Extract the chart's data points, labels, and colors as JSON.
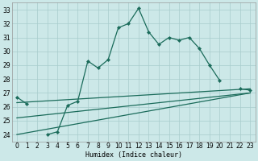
{
  "xlabel": "Humidex (Indice chaleur)",
  "bg_color": "#cce8e8",
  "grid_color": "#a8cccc",
  "line_color": "#1a6b5a",
  "xlim": [
    -0.5,
    23.5
  ],
  "ylim": [
    23.5,
    33.5
  ],
  "yticks": [
    24,
    25,
    26,
    27,
    28,
    29,
    30,
    31,
    32,
    33
  ],
  "xtick_labels": [
    "0",
    "1",
    "2",
    "3",
    "4",
    "5",
    "6",
    "7",
    "8",
    "9",
    "10",
    "11",
    "12",
    "13",
    "14",
    "15",
    "16",
    "17",
    "18",
    "19",
    "20",
    "21",
    "22",
    "23"
  ],
  "main_series": {
    "x": [
      0,
      1,
      3,
      4,
      5,
      6,
      7,
      8,
      9,
      10,
      11,
      12,
      13,
      14,
      15,
      16,
      17,
      18,
      19,
      20,
      22,
      23
    ],
    "y": [
      26.7,
      26.2,
      24.0,
      24.2,
      26.1,
      26.4,
      29.3,
      28.8,
      29.4,
      31.7,
      32.0,
      33.1,
      31.4,
      30.5,
      31.0,
      30.8,
      31.0,
      30.2,
      29.0,
      27.9,
      27.3,
      27.2
    ]
  },
  "trend_lines": [
    {
      "x": [
        0,
        23
      ],
      "y": [
        26.3,
        27.3
      ]
    },
    {
      "x": [
        0,
        23
      ],
      "y": [
        25.2,
        27.0
      ]
    },
    {
      "x": [
        0,
        23
      ],
      "y": [
        24.0,
        27.0
      ]
    }
  ]
}
